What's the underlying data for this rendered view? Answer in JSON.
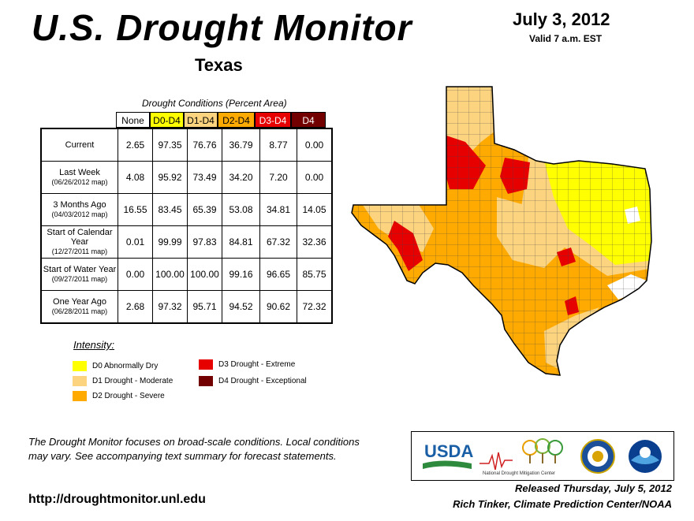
{
  "header": {
    "title": "U.S. Drought Monitor",
    "state": "Texas",
    "date": "July 3, 2012",
    "valid": "Valid 7 a.m. EST"
  },
  "table": {
    "caption": "Drought Conditions (Percent Area)",
    "columns": [
      "None",
      "D0-D4",
      "D1-D4",
      "D2-D4",
      "D3-D4",
      "D4"
    ],
    "column_colors": [
      "#ffffff",
      "#ffff00",
      "#fcd37f",
      "#ffaa00",
      "#e60000",
      "#730000"
    ],
    "rows": [
      {
        "label": "Current",
        "sub": "",
        "values": [
          "2.65",
          "97.35",
          "76.76",
          "36.79",
          "8.77",
          "0.00"
        ]
      },
      {
        "label": "Last Week",
        "sub": "(06/26/2012 map)",
        "values": [
          "4.08",
          "95.92",
          "73.49",
          "34.20",
          "7.20",
          "0.00"
        ]
      },
      {
        "label": "3 Months Ago",
        "sub": "(04/03/2012 map)",
        "values": [
          "16.55",
          "83.45",
          "65.39",
          "53.08",
          "34.81",
          "14.05"
        ]
      },
      {
        "label": "Start of Calendar Year",
        "sub": "(12/27/2011 map)",
        "values": [
          "0.01",
          "99.99",
          "97.83",
          "84.81",
          "67.32",
          "32.36"
        ]
      },
      {
        "label": "Start of Water Year",
        "sub": "(09/27/2011 map)",
        "values": [
          "0.00",
          "100.00",
          "100.00",
          "99.16",
          "96.65",
          "85.75"
        ]
      },
      {
        "label": "One Year Ago",
        "sub": "(06/28/2011 map)",
        "values": [
          "2.68",
          "97.32",
          "95.71",
          "94.52",
          "90.62",
          "72.32"
        ]
      }
    ]
  },
  "legend": {
    "title": "Intensity:",
    "items": [
      {
        "label": "D0 Abnormally Dry",
        "color": "#ffff00"
      },
      {
        "label": "D1 Drought - Moderate",
        "color": "#fcd37f"
      },
      {
        "label": "D2 Drought - Severe",
        "color": "#ffaa00"
      },
      {
        "label": "D3 Drought - Extreme",
        "color": "#e60000"
      },
      {
        "label": "D4 Drought - Exceptional",
        "color": "#730000"
      }
    ]
  },
  "footer": {
    "notice": "The Drought Monitor focuses on broad-scale conditions. Local conditions may vary. See accompanying text summary for forecast statements.",
    "url": "http://droughtmonitor.unl.edu",
    "released": "Released Thursday, July 5, 2012",
    "author": "Rich Tinker, Climate Prediction Center/NOAA"
  },
  "logos": {
    "usda": "USDA",
    "ndmc": "National Drought Mitigation Center",
    "icons": [
      "usda-logo",
      "ndmc-logo",
      "doc-seal-icon",
      "noaa-logo"
    ]
  }
}
